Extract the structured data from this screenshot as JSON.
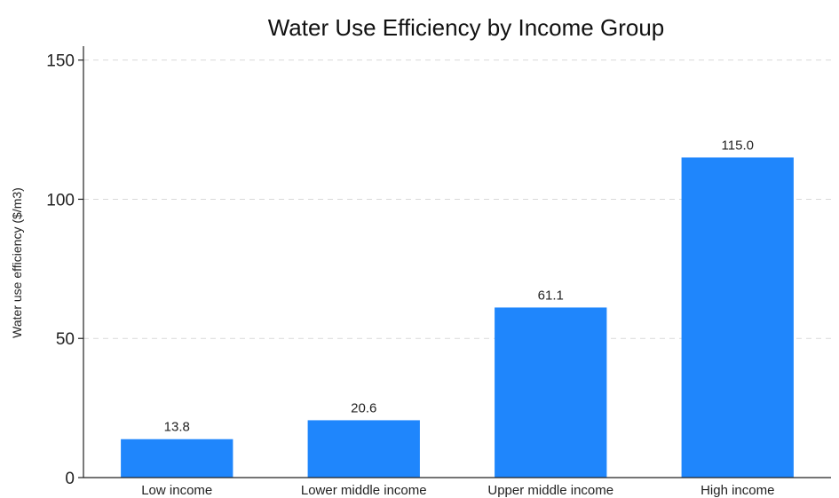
{
  "chart_data": {
    "type": "bar",
    "title": "Water Use Efficiency by Income Group",
    "xlabel": "",
    "ylabel": "Water use efficiency ($/m3)",
    "categories": [
      "Low income",
      "Lower middle income",
      "Upper middle income",
      "High income"
    ],
    "values": [
      13.8,
      20.6,
      61.1,
      115.0
    ],
    "data_labels": [
      "13.8",
      "20.6",
      "61.1",
      "115.0"
    ],
    "ylim": [
      0,
      155
    ],
    "yticks": [
      0,
      50,
      100,
      150
    ],
    "grid": true,
    "bar_color": "#1f86fc"
  }
}
